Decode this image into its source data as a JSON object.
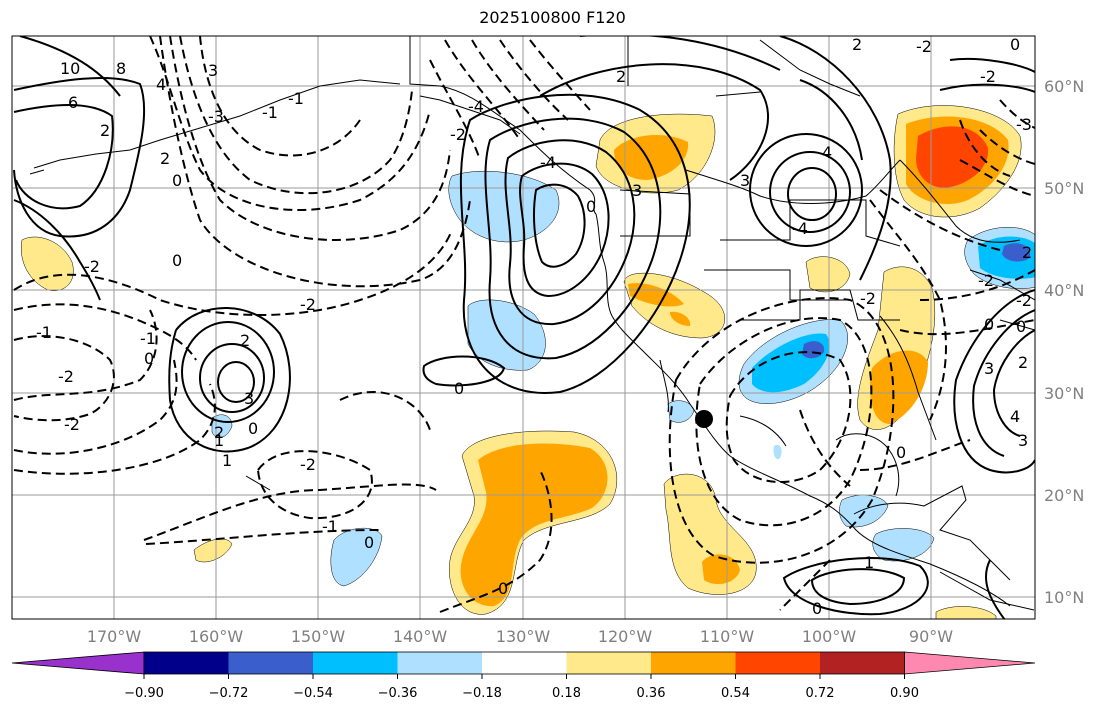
{
  "title": "2025100800 F120",
  "map": {
    "latitude_labels": [
      "60°N",
      "50°N",
      "40°N",
      "30°N",
      "20°N",
      "10°N"
    ],
    "longitude_labels": [
      "170°W",
      "160°W",
      "150°W",
      "140°W",
      "130°W",
      "120°W",
      "110°W",
      "100°W",
      "90°W"
    ],
    "marker": "location-marker"
  },
  "contour_labels": [
    "10",
    "6",
    "8",
    "2",
    "4",
    "2",
    "0",
    "0",
    "-2",
    "2",
    "3",
    "2",
    "-2",
    "0",
    "-4",
    "-2",
    "-2",
    "0",
    "3",
    "3",
    "4",
    "-3",
    "-4",
    "-4",
    "-3",
    "0",
    "-2",
    "-2",
    "2",
    "2",
    "-1",
    "-1",
    "0",
    "-1",
    "1",
    "0",
    "-2",
    "1",
    "0",
    "3",
    "2",
    "-2",
    "-2",
    "3",
    "-2",
    "-2",
    "0",
    "0",
    "0",
    "3",
    "4",
    "-1",
    "-1",
    "0",
    "1",
    "0",
    "2"
  ],
  "colorbar": {
    "ticks": [
      "−0.90",
      "−0.72",
      "−0.54",
      "−0.36",
      "−0.18",
      "0.18",
      "0.36",
      "0.54",
      "0.72",
      "0.90"
    ],
    "colors": [
      "#9932cc",
      "#00008b",
      "#3a5fcd",
      "#00bfff",
      "#b0e0ff",
      "#ffffff",
      "#ffe98a",
      "#ffa500",
      "#ff4500",
      "#b22222",
      "#ff88b0"
    ]
  }
}
